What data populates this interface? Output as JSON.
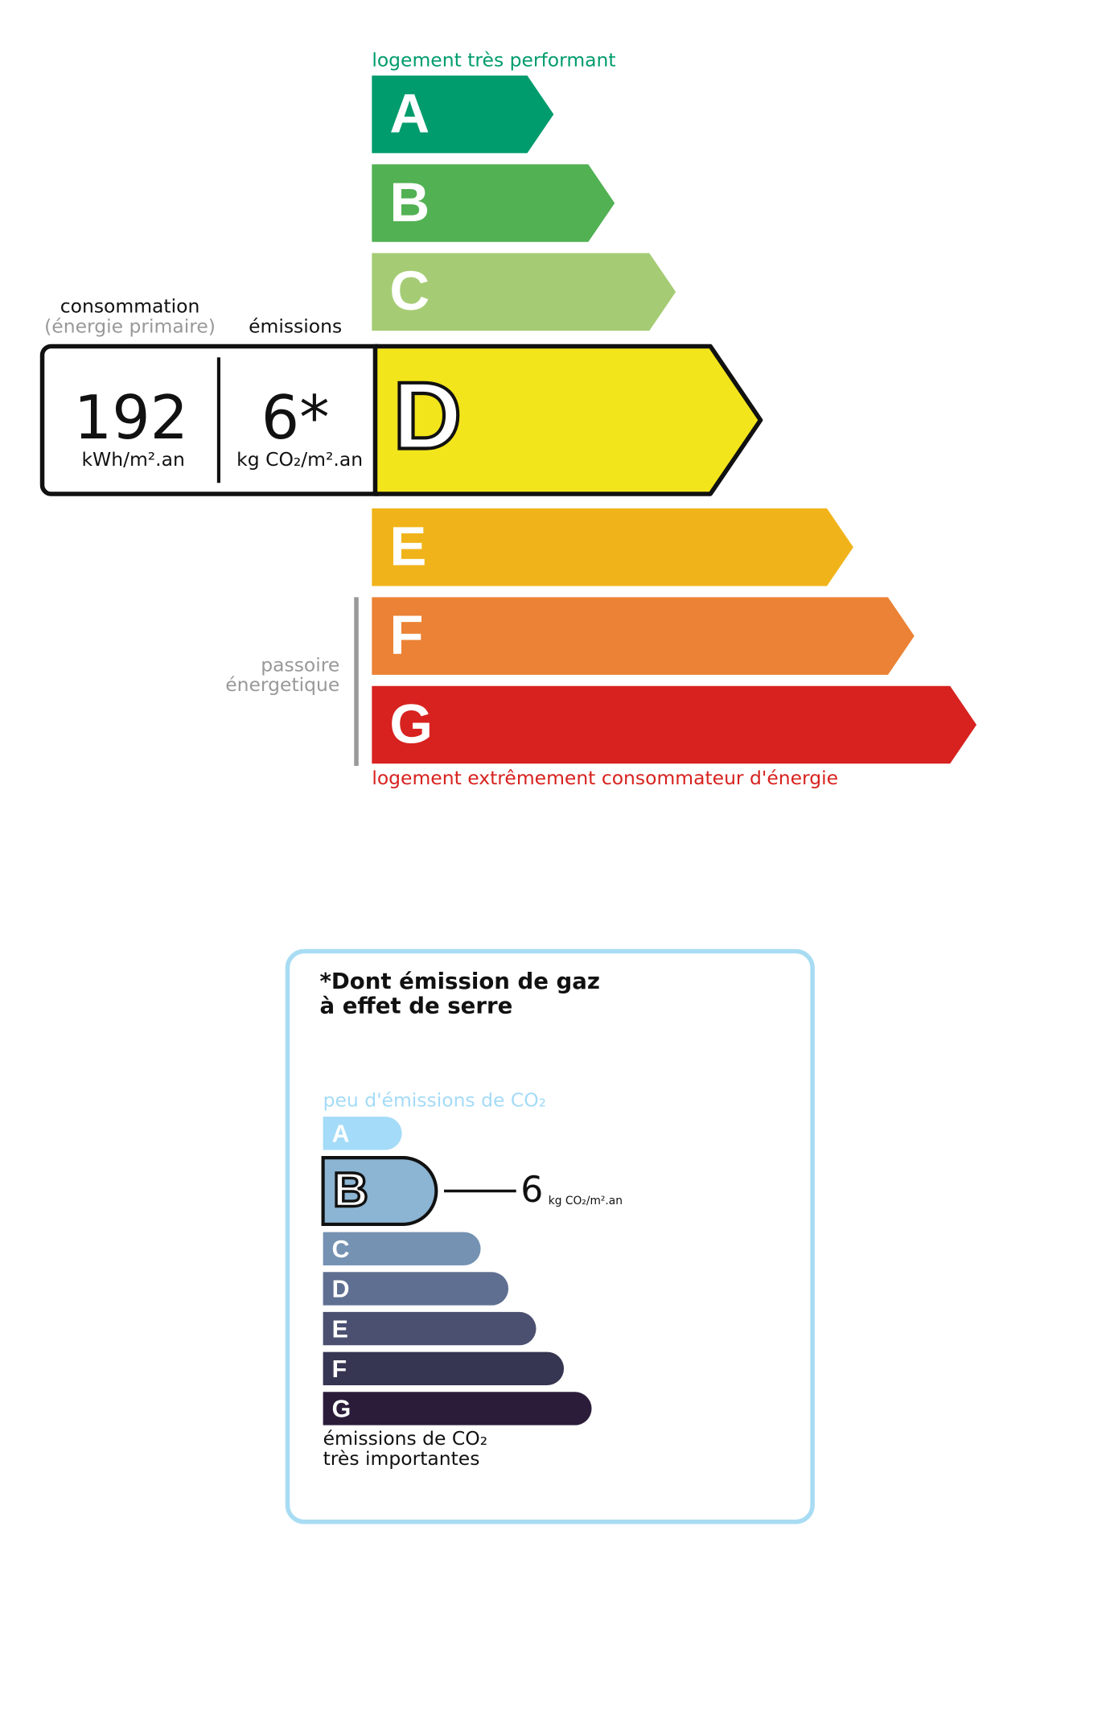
{
  "energy": {
    "top_label": "logement très performant",
    "bottom_label": "logement extrêmement consommateur d'énergie",
    "classes": [
      "A",
      "B",
      "C",
      "D",
      "E",
      "F",
      "G"
    ],
    "consumption_title": "consommation",
    "consumption_subtitle": "(énergie primaire)",
    "emissions_title": "émissions",
    "consumption_value": 192,
    "consumption_unit": "kWh/m².an",
    "emissions_value": "6*",
    "emissions_unit": "kg CO₂/m².an",
    "sieve_label": [
      "passoire",
      "énergetique"
    ]
  },
  "ges": {
    "title": [
      "*Dont émission de gaz",
      "à effet de serre"
    ],
    "top_label": "peu d'émissions de CO₂",
    "classes": [
      "A",
      "B",
      "C",
      "D",
      "E",
      "F",
      "G"
    ],
    "value": 6,
    "unit": "kg CO₂/m².an",
    "bottom_label": [
      "émissions de CO₂",
      "très importantes"
    ]
  }
}
